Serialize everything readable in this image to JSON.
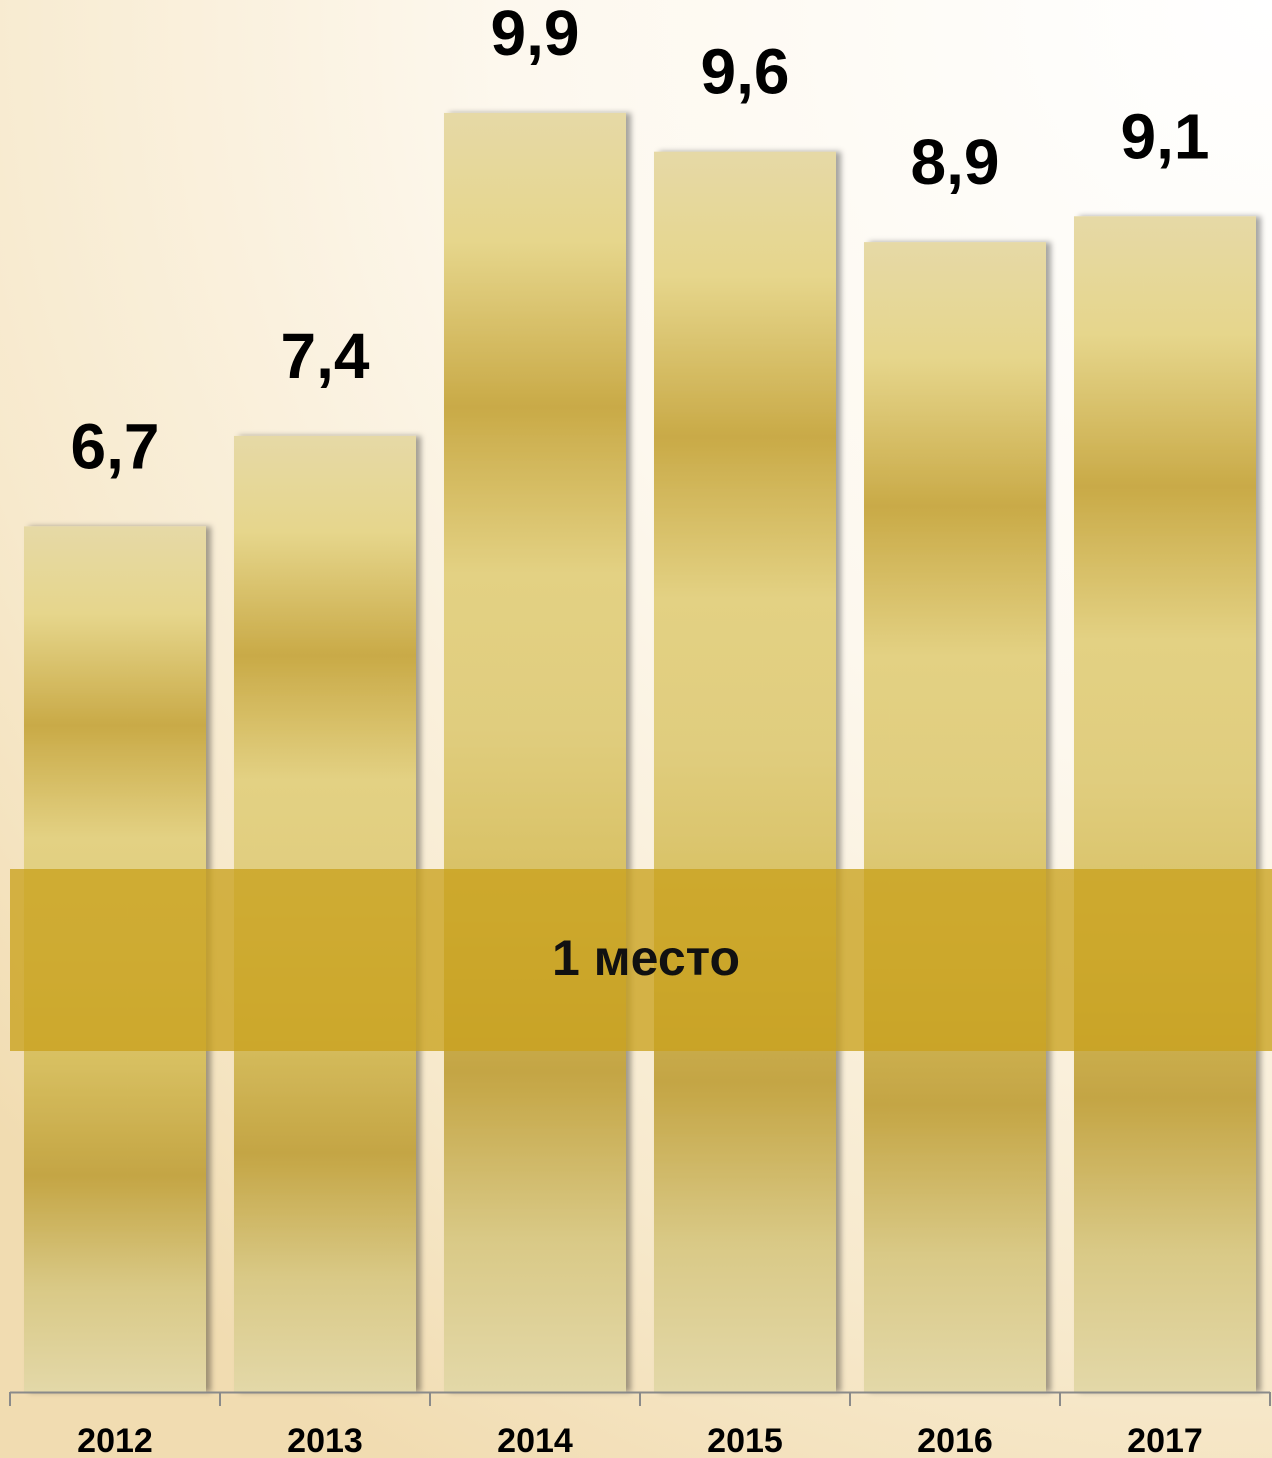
{
  "chart_data": {
    "type": "bar",
    "categories": [
      "2012",
      "2013",
      "2014",
      "2015",
      "2016",
      "2017"
    ],
    "values": [
      6.7,
      7.4,
      9.9,
      9.6,
      8.9,
      9.1
    ],
    "value_labels": [
      "6,7",
      "7,4",
      "9,9",
      "9,6",
      "8,9",
      "9,1"
    ],
    "annotation": "1 место",
    "title": "",
    "xlabel": "",
    "ylabel": "",
    "ylim": [
      0,
      10.5
    ],
    "grid": false,
    "legend": "none"
  },
  "colors": {
    "bar_light": "#e7dcaa",
    "bar_gold": "#c9aa47",
    "bar_mid": "#e6d68c",
    "band": "#c9a21e",
    "axis": "#8a8a8a",
    "text": "#000000"
  }
}
